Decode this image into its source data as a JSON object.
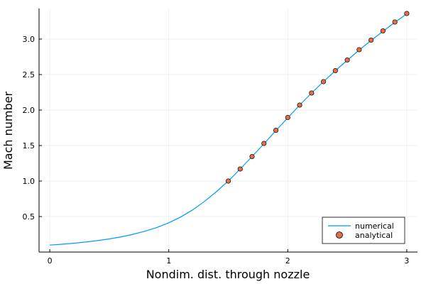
{
  "chart_data": {
    "type": "line",
    "title": "",
    "xlabel": "Nondim. dist. through nozzle",
    "ylabel": "Mach number",
    "xlim": [
      -0.09,
      3.09
    ],
    "ylim": [
      0.0,
      3.43
    ],
    "xticks": [
      0,
      1,
      2,
      3
    ],
    "xtick_labels": [
      "0",
      "1",
      "2",
      "3"
    ],
    "yticks": [
      0.5,
      1.0,
      1.5,
      2.0,
      2.5,
      3.0
    ],
    "ytick_labels": [
      "0.5",
      "1.0",
      "1.5",
      "2.0",
      "2.5",
      "3.0"
    ],
    "grid": true,
    "legend_position": "bottom-right",
    "series": [
      {
        "name": "numerical",
        "kind": "line",
        "color": "#009AFA",
        "x": [
          0,
          0.1,
          0.2,
          0.3,
          0.4,
          0.5,
          0.6,
          0.7,
          0.8,
          0.9,
          1.0,
          1.1,
          1.2,
          1.3,
          1.4,
          1.5,
          1.6,
          1.7,
          1.8,
          1.9,
          2.0,
          2.1,
          2.2,
          2.3,
          2.4,
          2.5,
          2.6,
          2.7,
          2.8,
          2.9,
          3.0
        ],
        "y": [
          0.098,
          0.11,
          0.124,
          0.141,
          0.161,
          0.185,
          0.214,
          0.25,
          0.293,
          0.346,
          0.412,
          0.493,
          0.593,
          0.713,
          0.85,
          1.0,
          1.17,
          1.345,
          1.525,
          1.71,
          1.89,
          2.07,
          2.24,
          2.4,
          2.555,
          2.7,
          2.845,
          2.98,
          3.11,
          3.235,
          3.355
        ]
      },
      {
        "name": "analytical",
        "kind": "scatter",
        "color": "#E26F46",
        "x": [
          1.5,
          1.6,
          1.7,
          1.8,
          1.9,
          2.0,
          2.1,
          2.2,
          2.3,
          2.4,
          2.5,
          2.6,
          2.7,
          2.8,
          2.9,
          3.0
        ],
        "y": [
          1.0,
          1.17,
          1.345,
          1.53,
          1.715,
          1.895,
          2.07,
          2.24,
          2.4,
          2.555,
          2.705,
          2.85,
          2.985,
          3.115,
          3.24,
          3.36
        ]
      }
    ]
  }
}
